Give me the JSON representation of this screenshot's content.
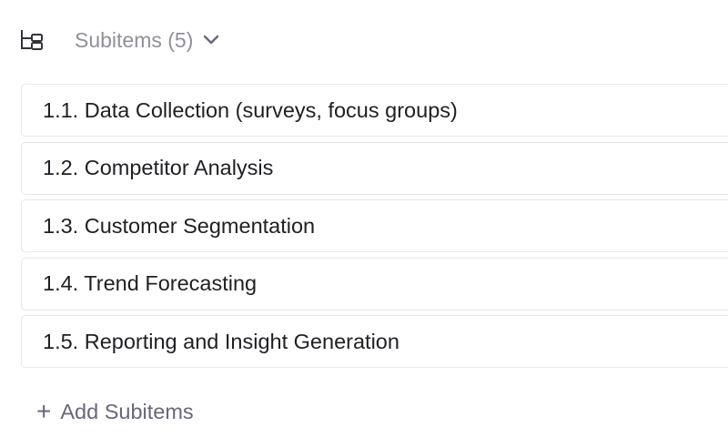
{
  "header": {
    "icon": "subitems-tree-icon",
    "title": "Subitems (5)",
    "toggle_icon": "chevron-down-icon"
  },
  "subitems": [
    {
      "label": "1.1. Data Collection (surveys, focus groups)"
    },
    {
      "label": "1.2. Competitor Analysis"
    },
    {
      "label": "1.3. Customer Segmentation"
    },
    {
      "label": "1.4. Trend Forecasting"
    },
    {
      "label": "1.5. Reporting and Insight Generation"
    }
  ],
  "add_button": {
    "icon": "plus-icon",
    "symbol": "+",
    "label": "Add Subitems"
  }
}
